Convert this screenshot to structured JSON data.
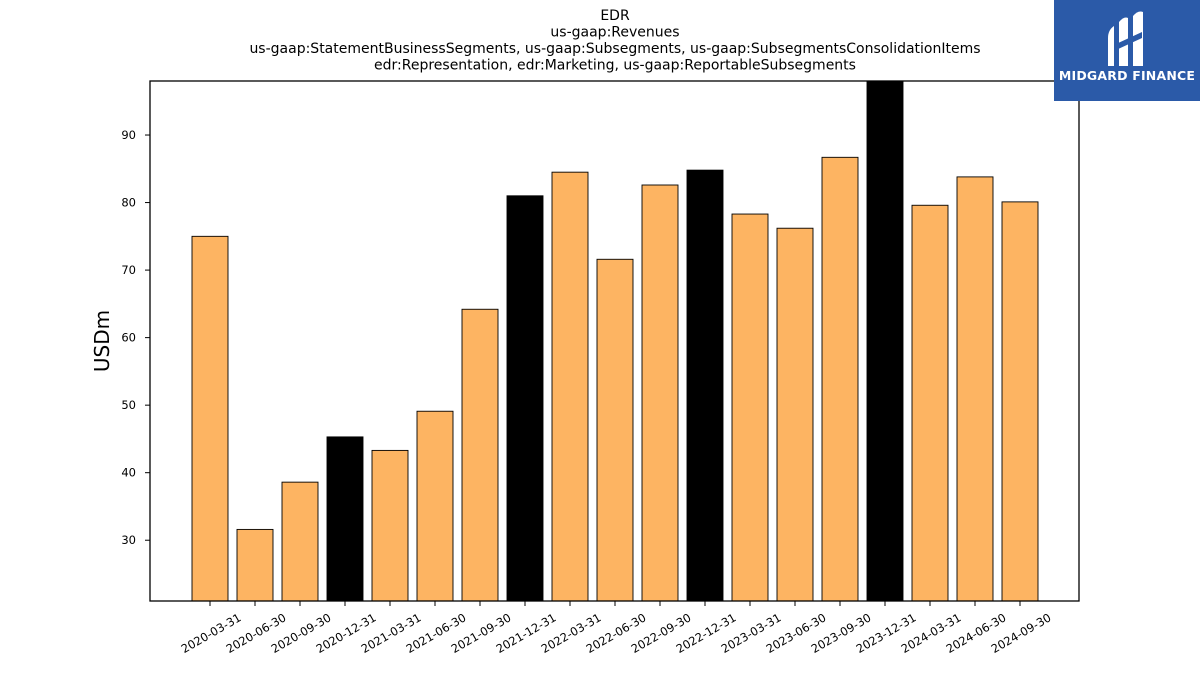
{
  "brand": {
    "name": "MIDGARD FINANCE",
    "logo_icon": "midgard-mark-icon",
    "color": "#2b5aa8"
  },
  "chart_data": {
    "type": "bar",
    "title_lines": [
      "EDR",
      "us-gaap:Revenues",
      "us-gaap:StatementBusinessSegments, us-gaap:Subsegments, us-gaap:SubsegmentsConsolidationItems",
      "edr:Representation, edr:Marketing, us-gaap:ReportableSubsegments"
    ],
    "ylabel": "USDm",
    "xlabel": "",
    "ylim": [
      21,
      98
    ],
    "yticks": [
      30,
      40,
      50,
      60,
      70,
      80,
      90
    ],
    "categories": [
      "2020-03-31",
      "2020-06-30",
      "2020-09-30",
      "2020-12-31",
      "2021-03-31",
      "2021-06-30",
      "2021-09-30",
      "2021-12-31",
      "2022-03-31",
      "2022-06-30",
      "2022-09-30",
      "2022-12-31",
      "2023-03-31",
      "2023-06-30",
      "2023-09-30",
      "2023-12-31",
      "2024-03-31",
      "2024-06-30",
      "2024-09-30"
    ],
    "values": [
      75.0,
      31.6,
      38.6,
      45.3,
      43.3,
      49.1,
      64.2,
      81.0,
      84.5,
      71.6,
      82.6,
      84.8,
      78.3,
      76.2,
      86.7,
      98.0,
      79.6,
      83.8,
      80.1
    ],
    "highlight": [
      false,
      false,
      false,
      true,
      false,
      false,
      false,
      true,
      false,
      false,
      false,
      true,
      false,
      false,
      false,
      true,
      false,
      false,
      false
    ],
    "colors": {
      "bar": "#fdb462",
      "highlight": "#000000",
      "edge": "#000000"
    },
    "grid": false,
    "legend": "none"
  }
}
